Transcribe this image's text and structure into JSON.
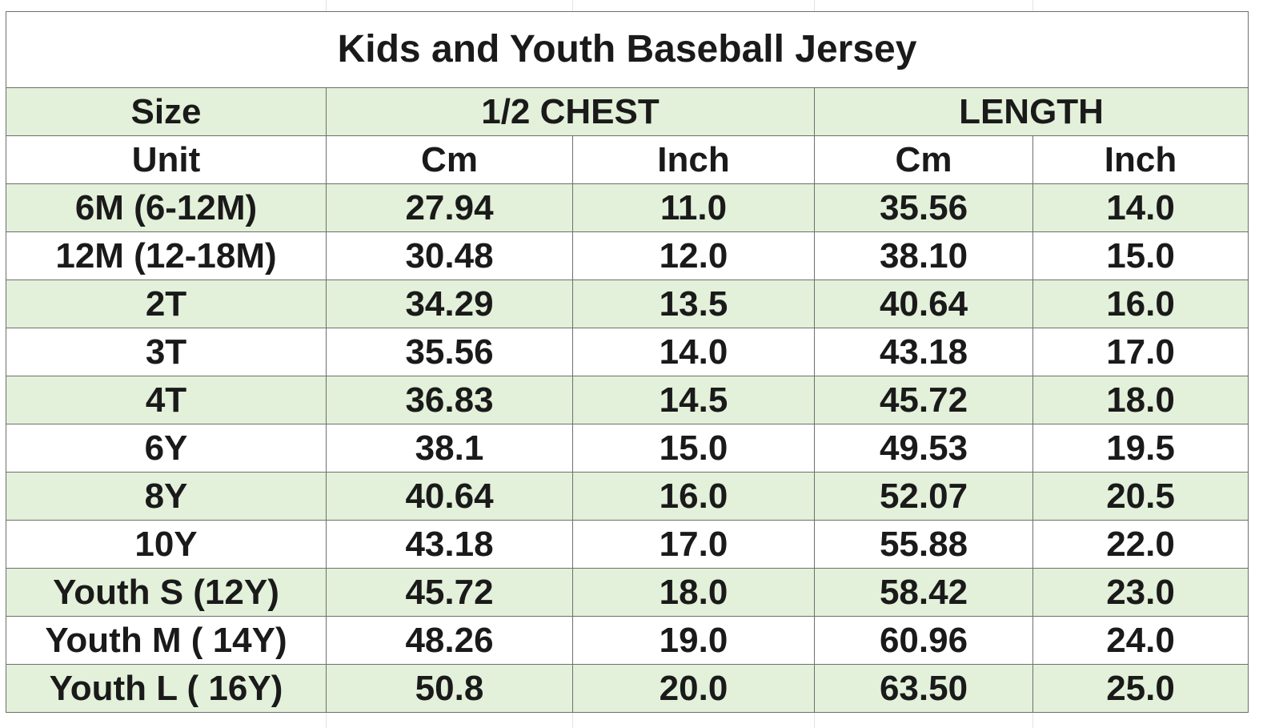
{
  "title": "Kids and Youth Baseball Jersey",
  "headers": {
    "size": "Size",
    "chest": "1/2 CHEST",
    "length": "LENGTH"
  },
  "units": {
    "label": "Unit",
    "chest_cm": "Cm",
    "chest_inch": "Inch",
    "length_cm": "Cm",
    "length_inch": "Inch"
  },
  "rows": [
    {
      "size": "6M (6-12M)",
      "chest_cm": "27.94",
      "chest_inch": "11.0",
      "length_cm": "35.56",
      "length_inch": "14.0"
    },
    {
      "size": "12M (12-18M)",
      "chest_cm": "30.48",
      "chest_inch": "12.0",
      "length_cm": "38.10",
      "length_inch": "15.0"
    },
    {
      "size": "2T",
      "chest_cm": "34.29",
      "chest_inch": "13.5",
      "length_cm": "40.64",
      "length_inch": "16.0"
    },
    {
      "size": "3T",
      "chest_cm": "35.56",
      "chest_inch": "14.0",
      "length_cm": "43.18",
      "length_inch": "17.0"
    },
    {
      "size": "4T",
      "chest_cm": "36.83",
      "chest_inch": "14.5",
      "length_cm": "45.72",
      "length_inch": "18.0"
    },
    {
      "size": "6Y",
      "chest_cm": "38.1",
      "chest_inch": "15.0",
      "length_cm": "49.53",
      "length_inch": "19.5"
    },
    {
      "size": "8Y",
      "chest_cm": "40.64",
      "chest_inch": "16.0",
      "length_cm": "52.07",
      "length_inch": "20.5"
    },
    {
      "size": "10Y",
      "chest_cm": "43.18",
      "chest_inch": "17.0",
      "length_cm": "55.88",
      "length_inch": "22.0"
    },
    {
      "size": "Youth S (12Y)",
      "chest_cm": "45.72",
      "chest_inch": "18.0",
      "length_cm": "58.42",
      "length_inch": "23.0"
    },
    {
      "size": "Youth M ( 14Y)",
      "chest_cm": "48.26",
      "chest_inch": "19.0",
      "length_cm": "60.96",
      "length_inch": "24.0"
    },
    {
      "size": "Youth L ( 16Y)",
      "chest_cm": "50.8",
      "chest_inch": "20.0",
      "length_cm": "63.50",
      "length_inch": "25.0"
    }
  ],
  "colors": {
    "band": "#e3f0da",
    "border": "#6f6f6f"
  }
}
